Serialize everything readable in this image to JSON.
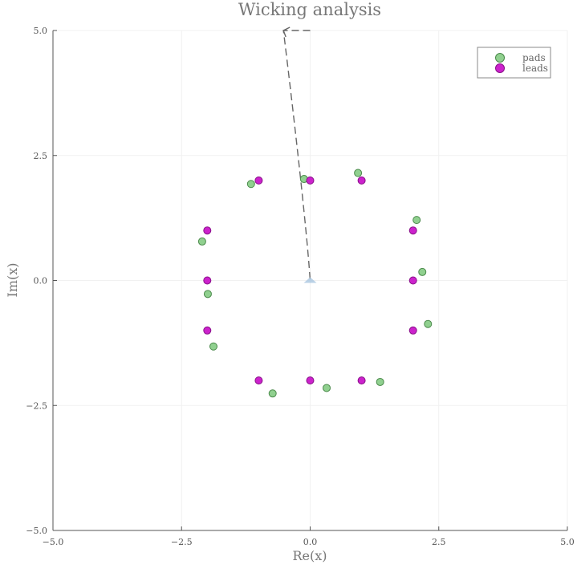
{
  "chart_data": {
    "type": "scatter",
    "title": "Wicking analysis",
    "xlabel": "Re(x)",
    "ylabel": "Im(x)",
    "xlim": [
      -5.0,
      5.0
    ],
    "ylim": [
      -5.0,
      5.0
    ],
    "xticks": [
      -5.0,
      -2.5,
      0.0,
      2.5,
      5.0
    ],
    "yticks": [
      -5.0,
      -2.5,
      0.0,
      2.5,
      5.0
    ],
    "x_tick_labels": [
      "−5.0",
      "−2.5",
      "0.0",
      "2.5",
      "5.0"
    ],
    "y_tick_labels": [
      "−5.0",
      "−2.5",
      "0.0",
      "2.5",
      "5.0"
    ],
    "grid": true,
    "legend_position": "top-right",
    "series": [
      {
        "name": "pads",
        "color": "#90d08f",
        "edge_color": "#4a8a4a",
        "points": [
          [
            -1.15,
            1.93
          ],
          [
            -0.12,
            2.03
          ],
          [
            0.93,
            2.15
          ],
          [
            2.07,
            1.21
          ],
          [
            2.18,
            0.17
          ],
          [
            2.29,
            -0.87
          ],
          [
            1.36,
            -2.03
          ],
          [
            0.32,
            -2.15
          ],
          [
            -0.73,
            -2.26
          ],
          [
            -1.88,
            -1.32
          ],
          [
            -1.99,
            -0.27
          ],
          [
            -2.1,
            0.78
          ]
        ]
      },
      {
        "name": "leads",
        "color": "#cc22cc",
        "edge_color": "#881188",
        "points": [
          [
            -1.0,
            2.0
          ],
          [
            0.0,
            2.0
          ],
          [
            1.0,
            2.0
          ],
          [
            2.0,
            1.0
          ],
          [
            2.0,
            0.0
          ],
          [
            2.0,
            -1.0
          ],
          [
            1.0,
            -2.0
          ],
          [
            0.0,
            -2.0
          ],
          [
            -1.0,
            -2.0
          ],
          [
            -2.0,
            -1.0
          ],
          [
            -2.0,
            0.0
          ],
          [
            -2.0,
            1.0
          ]
        ]
      }
    ],
    "annotations": [
      {
        "type": "arrow",
        "path": [
          [
            0.0,
            5.0
          ],
          [
            -0.52,
            5.0
          ],
          [
            -0.52,
            5.0
          ],
          [
            0.0,
            0.0
          ]
        ],
        "color": "#666666",
        "dashed": true
      }
    ],
    "origin_marker": {
      "x": 0.0,
      "y": 0.0,
      "color": "#a9c6e0"
    }
  }
}
